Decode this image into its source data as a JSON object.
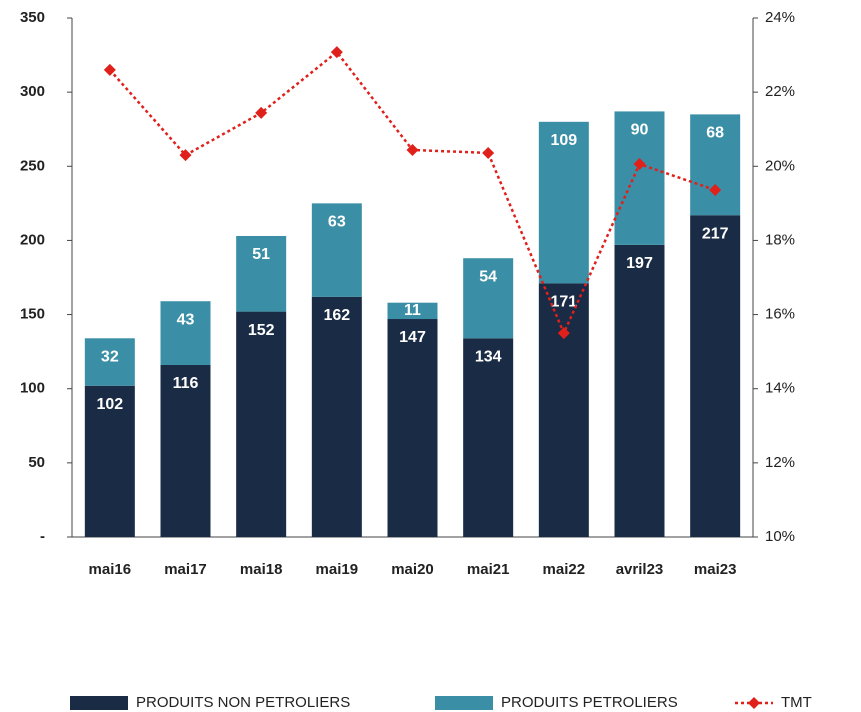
{
  "chart_data": {
    "type": "bar",
    "stacked": true,
    "categories": [
      "mai16",
      "mai17",
      "mai18",
      "mai19",
      "mai20",
      "mai21",
      "mai22",
      "avril23",
      "mai23"
    ],
    "series": [
      {
        "name": "PRODUITS NON PETROLIERS",
        "color": "#1a2b45",
        "values": [
          102,
          116,
          152,
          162,
          147,
          134,
          171,
          197,
          217
        ]
      },
      {
        "name": "PRODUITS PETROLIERS",
        "color": "#3a8fa6",
        "values": [
          32,
          43,
          51,
          63,
          11,
          54,
          109,
          90,
          68
        ]
      },
      {
        "name": "TMT",
        "type": "line",
        "axis": "y2",
        "color": "#e0201b",
        "values": [
          22.6,
          20.3,
          21.44,
          23.08,
          20.44,
          20.36,
          15.5,
          20.06,
          19.36
        ]
      }
    ],
    "ylim": [
      0,
      350
    ],
    "yticks": [
      {
        "value": 0,
        "label": "-"
      },
      50,
      100,
      150,
      200,
      250,
      300,
      350
    ],
    "y2lim": [
      10,
      24
    ],
    "y2ticks": [
      {
        "value": 10,
        "label": "10%"
      },
      {
        "value": 12,
        "label": "12%"
      },
      {
        "value": 14,
        "label": "14%"
      },
      {
        "value": 16,
        "label": "16%"
      },
      {
        "value": 18,
        "label": "18%"
      },
      {
        "value": 20,
        "label": "20%"
      },
      {
        "value": 22,
        "label": "22%"
      },
      {
        "value": 24,
        "label": "24%"
      }
    ],
    "grid": false,
    "legend": "bottom"
  }
}
